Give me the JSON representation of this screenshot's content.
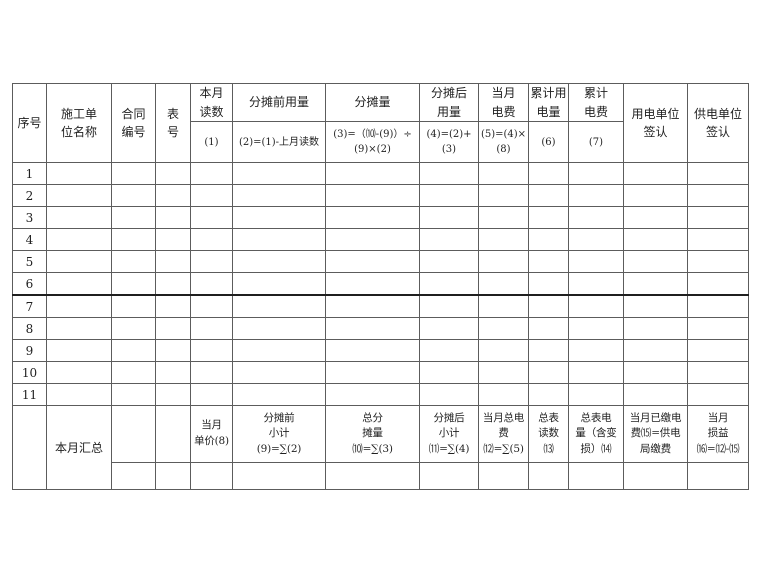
{
  "colors": {
    "background": "#ffffff",
    "grid_line": "#5c5c5c",
    "outer_border": "#3a3a3a",
    "thick_divider": "#1f1f1f",
    "text": "#1f1f1f"
  },
  "table": {
    "columns": [
      {
        "id": "serial",
        "title": "序号",
        "formula": ""
      },
      {
        "id": "unit-name",
        "title": "施工单\n位名称",
        "formula": ""
      },
      {
        "id": "contract-no",
        "title": "合同\n编号",
        "formula": ""
      },
      {
        "id": "meter-no",
        "title": "表\n号",
        "formula": ""
      },
      {
        "id": "current-reading",
        "title": "本月\n读数",
        "formula": "(1)"
      },
      {
        "id": "pre-allocation-usage",
        "title": "分摊前用量",
        "formula": "(2)=(1)-上月读数"
      },
      {
        "id": "allocation-amount",
        "title": "分摊量",
        "formula": "(3)=（⑽-(9)）÷\n(9)×(2)"
      },
      {
        "id": "post-allocation-usage",
        "title": "分摊后\n用量",
        "formula": "(4)=(2)+(3)"
      },
      {
        "id": "month-fee",
        "title": "当月\n电费",
        "formula": "(5)=(4)×\n(8)"
      },
      {
        "id": "cumulative-usage",
        "title": "累计用\n电量",
        "formula": "(6)"
      },
      {
        "id": "cumulative-fee",
        "title": "累计\n电费",
        "formula": "(7)"
      },
      {
        "id": "user-unit-sign",
        "title": "用电单位\n签认",
        "formula": ""
      },
      {
        "id": "supply-unit-sign",
        "title": "供电单位\n签认",
        "formula": ""
      }
    ],
    "row_numbers": [
      "1",
      "2",
      "3",
      "4",
      "5",
      "6",
      "7",
      "8",
      "9",
      "10",
      "11"
    ],
    "summary": {
      "label": "本月汇总",
      "cells": [
        "",
        "",
        "当月\n单价(8)",
        "分摊前\n小计\n(9)=∑(2)",
        "总分\n摊量\n⑽=∑(3)",
        "分摊后\n小计\n⑾=∑(4)",
        "当月总电\n费\n⑿=∑(5)",
        "总表\n读数\n⒀",
        "总表电\n量（含变\n损）⒁",
        "当月已缴电\n费⒂=供电\n局缴费",
        "当月\n损益\n⒃=⑿-⒂"
      ]
    }
  }
}
